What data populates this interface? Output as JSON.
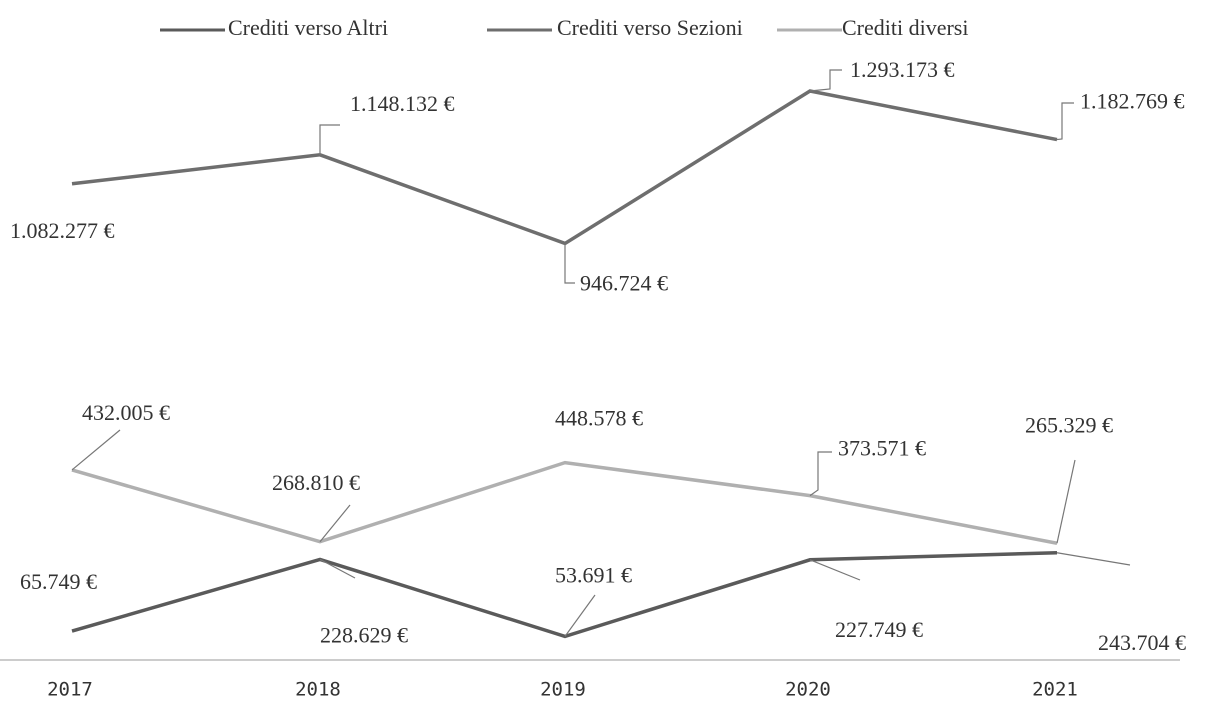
{
  "chart_data": {
    "type": "line",
    "x": [
      "2017",
      "2018",
      "2019",
      "2020",
      "2021"
    ],
    "ylim": [
      0,
      1400000
    ],
    "series": [
      {
        "name": "Crediti verso Altri",
        "color": "#5a5a5a",
        "values": [
          65749,
          228629,
          53691,
          227749,
          243704
        ],
        "value_labels": [
          "65.749 €",
          "228.629 €",
          "53.691 €",
          "227.749 €",
          "243.704 €"
        ]
      },
      {
        "name": "Crediti verso Sezioni",
        "color": "#6e6e6e",
        "values": [
          1082277,
          1148132,
          946724,
          1293173,
          1182769
        ],
        "value_labels": [
          "1.082.277 €",
          "1.148.132 €",
          "946.724 €",
          "1.293.173 €",
          "1.182.769 €"
        ]
      },
      {
        "name": "Crediti diversi",
        "color": "#b0b0b0",
        "values": [
          432005,
          268810,
          448578,
          373571,
          265329
        ],
        "value_labels": [
          "432.005 €",
          "268.810 €",
          "448.578 €",
          "373.571 €",
          "265.329 €"
        ]
      }
    ]
  }
}
